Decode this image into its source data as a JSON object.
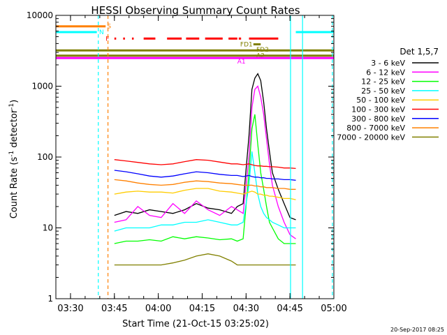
{
  "chart_data": {
    "type": "line",
    "title": "HESSI Observing Summary Count Rates",
    "xlabel": "Start Time (21-Oct-15 03:25:02)",
    "ylabel": "Count Rate (s",
    "ylabel_exp1": "-1",
    "ylabel_mid": " detector",
    "ylabel_exp2": "-1",
    "ylabel_end": ")",
    "yscale": "log",
    "ylim": [
      1,
      10000
    ],
    "xlim_minutes": [
      0,
      95
    ],
    "x_ticks": [
      {
        "label": "03:30",
        "minute": 5
      },
      {
        "label": "03:45",
        "minute": 20
      },
      {
        "label": "04:00",
        "minute": 35
      },
      {
        "label": "04:15",
        "minute": 50
      },
      {
        "label": "04:30",
        "minute": 65
      },
      {
        "label": "04:45",
        "minute": 80
      },
      {
        "label": "05:00",
        "minute": 95
      }
    ],
    "y_ticks": [
      {
        "label": "1",
        "value": 1
      },
      {
        "label": "10",
        "value": 10
      },
      {
        "label": "100",
        "value": 100
      },
      {
        "label": "1000",
        "value": 1000
      },
      {
        "label": "10000",
        "value": 10000
      }
    ],
    "legend_title": "Det 1,5,7",
    "legend_placement": "right",
    "series": [
      {
        "name": "3 - 6 keV",
        "color": "#000000",
        "points": [
          [
            20,
            15
          ],
          [
            24,
            17
          ],
          [
            28,
            16
          ],
          [
            32,
            18
          ],
          [
            36,
            17
          ],
          [
            40,
            16
          ],
          [
            44,
            18
          ],
          [
            48,
            22
          ],
          [
            52,
            19
          ],
          [
            56,
            18
          ],
          [
            60,
            16
          ],
          [
            62,
            20
          ],
          [
            64,
            22
          ],
          [
            66,
            200
          ],
          [
            67,
            900
          ],
          [
            68,
            1300
          ],
          [
            69,
            1500
          ],
          [
            70,
            1200
          ],
          [
            71,
            600
          ],
          [
            72,
            250
          ],
          [
            73,
            120
          ],
          [
            74,
            60
          ],
          [
            76,
            35
          ],
          [
            78,
            22
          ],
          [
            80,
            14
          ],
          [
            82,
            13
          ]
        ]
      },
      {
        "name": "6 - 12 keV",
        "color": "#ff00ff",
        "points": [
          [
            20,
            12
          ],
          [
            24,
            13
          ],
          [
            28,
            20
          ],
          [
            32,
            15
          ],
          [
            36,
            14
          ],
          [
            40,
            22
          ],
          [
            44,
            16
          ],
          [
            48,
            24
          ],
          [
            52,
            18
          ],
          [
            56,
            15
          ],
          [
            60,
            20
          ],
          [
            62,
            18
          ],
          [
            64,
            16
          ],
          [
            66,
            100
          ],
          [
            67,
            500
          ],
          [
            68,
            900
          ],
          [
            69,
            1000
          ],
          [
            70,
            700
          ],
          [
            71,
            400
          ],
          [
            72,
            180
          ],
          [
            73,
            80
          ],
          [
            74,
            40
          ],
          [
            76,
            20
          ],
          [
            78,
            12
          ],
          [
            80,
            8
          ],
          [
            82,
            7
          ]
        ]
      },
      {
        "name": "12 - 25 keV",
        "color": "#00ff00",
        "points": [
          [
            20,
            6
          ],
          [
            24,
            6.5
          ],
          [
            28,
            6.5
          ],
          [
            32,
            6.8
          ],
          [
            36,
            6.5
          ],
          [
            40,
            7.5
          ],
          [
            44,
            7
          ],
          [
            48,
            7.5
          ],
          [
            52,
            7.2
          ],
          [
            56,
            6.8
          ],
          [
            60,
            7
          ],
          [
            62,
            6.5
          ],
          [
            64,
            7
          ],
          [
            66,
            60
          ],
          [
            67,
            250
          ],
          [
            68,
            400
          ],
          [
            69,
            150
          ],
          [
            70,
            60
          ],
          [
            71,
            35
          ],
          [
            72,
            20
          ],
          [
            73,
            12
          ],
          [
            74,
            10
          ],
          [
            76,
            7
          ],
          [
            78,
            6
          ],
          [
            80,
            6
          ],
          [
            82,
            6
          ]
        ]
      },
      {
        "name": "25 - 50 keV",
        "color": "#00ffff",
        "points": [
          [
            20,
            9
          ],
          [
            24,
            10
          ],
          [
            28,
            10
          ],
          [
            32,
            10
          ],
          [
            36,
            11
          ],
          [
            40,
            11
          ],
          [
            44,
            12
          ],
          [
            48,
            12
          ],
          [
            52,
            13
          ],
          [
            56,
            12
          ],
          [
            60,
            11
          ],
          [
            62,
            11
          ],
          [
            64,
            12
          ],
          [
            66,
            40
          ],
          [
            67,
            120
          ],
          [
            68,
            60
          ],
          [
            69,
            30
          ],
          [
            70,
            20
          ],
          [
            71,
            16
          ],
          [
            72,
            14
          ],
          [
            73,
            13
          ],
          [
            74,
            12
          ],
          [
            76,
            11
          ],
          [
            78,
            10
          ],
          [
            80,
            10
          ],
          [
            82,
            10
          ]
        ]
      },
      {
        "name": "50 - 100 keV",
        "color": "#ffcc00",
        "points": [
          [
            20,
            30
          ],
          [
            24,
            32
          ],
          [
            28,
            33
          ],
          [
            32,
            32
          ],
          [
            36,
            32
          ],
          [
            40,
            31
          ],
          [
            44,
            34
          ],
          [
            48,
            36
          ],
          [
            52,
            36
          ],
          [
            56,
            33
          ],
          [
            60,
            32
          ],
          [
            62,
            31
          ],
          [
            64,
            30
          ],
          [
            66,
            32
          ],
          [
            67,
            33
          ],
          [
            68,
            32
          ],
          [
            69,
            30
          ],
          [
            70,
            30
          ],
          [
            71,
            29
          ],
          [
            72,
            29
          ],
          [
            73,
            28
          ],
          [
            74,
            28
          ],
          [
            76,
            27
          ],
          [
            78,
            26
          ],
          [
            80,
            26
          ],
          [
            82,
            25
          ]
        ]
      },
      {
        "name": "100 - 300 keV",
        "color": "#ff0000",
        "points": [
          [
            20,
            92
          ],
          [
            24,
            88
          ],
          [
            28,
            84
          ],
          [
            32,
            80
          ],
          [
            36,
            78
          ],
          [
            40,
            80
          ],
          [
            44,
            86
          ],
          [
            48,
            92
          ],
          [
            52,
            90
          ],
          [
            56,
            85
          ],
          [
            60,
            80
          ],
          [
            62,
            80
          ],
          [
            64,
            78
          ],
          [
            66,
            80
          ],
          [
            67,
            78
          ],
          [
            68,
            76
          ],
          [
            69,
            75
          ],
          [
            70,
            75
          ],
          [
            71,
            74
          ],
          [
            72,
            74
          ],
          [
            73,
            73
          ],
          [
            74,
            73
          ],
          [
            76,
            72
          ],
          [
            78,
            70
          ],
          [
            80,
            70
          ],
          [
            82,
            69
          ]
        ]
      },
      {
        "name": "300 - 800 keV",
        "color": "#0000ff",
        "points": [
          [
            20,
            65
          ],
          [
            24,
            62
          ],
          [
            28,
            58
          ],
          [
            32,
            54
          ],
          [
            36,
            52
          ],
          [
            40,
            54
          ],
          [
            44,
            58
          ],
          [
            48,
            62
          ],
          [
            52,
            60
          ],
          [
            56,
            57
          ],
          [
            60,
            55
          ],
          [
            62,
            55
          ],
          [
            64,
            53
          ],
          [
            66,
            55
          ],
          [
            67,
            53
          ],
          [
            68,
            52
          ],
          [
            69,
            52
          ],
          [
            70,
            51
          ],
          [
            71,
            51
          ],
          [
            72,
            50
          ],
          [
            73,
            50
          ],
          [
            74,
            49
          ],
          [
            76,
            49
          ],
          [
            78,
            48
          ],
          [
            80,
            48
          ],
          [
            82,
            47
          ]
        ]
      },
      {
        "name": "800 - 7000 keV",
        "color": "#ff8000",
        "points": [
          [
            20,
            48
          ],
          [
            24,
            46
          ],
          [
            28,
            43
          ],
          [
            32,
            41
          ],
          [
            36,
            40
          ],
          [
            40,
            41
          ],
          [
            44,
            44
          ],
          [
            48,
            46
          ],
          [
            52,
            45
          ],
          [
            56,
            43
          ],
          [
            60,
            42
          ],
          [
            62,
            41
          ],
          [
            64,
            40
          ],
          [
            66,
            40
          ],
          [
            67,
            40
          ],
          [
            68,
            39
          ],
          [
            69,
            39
          ],
          [
            70,
            38
          ],
          [
            71,
            38
          ],
          [
            72,
            37
          ],
          [
            73,
            37
          ],
          [
            74,
            37
          ],
          [
            76,
            36
          ],
          [
            78,
            36
          ],
          [
            80,
            35
          ],
          [
            82,
            35
          ]
        ]
      },
      {
        "name": "7000 - 20000 keV",
        "color": "#808000",
        "points": [
          [
            20,
            3
          ],
          [
            24,
            3
          ],
          [
            28,
            3
          ],
          [
            32,
            3
          ],
          [
            36,
            3
          ],
          [
            40,
            3.2
          ],
          [
            44,
            3.5
          ],
          [
            48,
            4
          ],
          [
            52,
            4.3
          ],
          [
            56,
            4
          ],
          [
            60,
            3.4
          ],
          [
            62,
            3
          ],
          [
            64,
            3
          ],
          [
            66,
            3
          ],
          [
            67,
            3
          ],
          [
            68,
            3
          ],
          [
            69,
            3
          ],
          [
            70,
            3
          ],
          [
            71,
            3
          ],
          [
            72,
            3
          ],
          [
            73,
            3
          ],
          [
            74,
            3
          ],
          [
            76,
            3
          ],
          [
            78,
            3
          ],
          [
            80,
            3
          ],
          [
            82,
            3
          ]
        ]
      }
    ],
    "flag_bars": [
      {
        "label": "S",
        "color": "#ff8000",
        "value": 7000,
        "segments": [
          [
            0,
            17
          ]
        ]
      },
      {
        "label": "N",
        "color": "#00ffff",
        "value": 5800,
        "segments": [
          [
            0,
            14
          ],
          [
            82,
            95
          ]
        ]
      },
      {
        "label": "F",
        "color": "#ff0000",
        "value": 4700,
        "segments": [
          [
            20,
            20.6
          ],
          [
            23,
            23.6
          ],
          [
            26,
            26.6
          ],
          [
            30,
            34
          ],
          [
            38,
            43
          ],
          [
            44.5,
            49
          ],
          [
            51,
            57
          ],
          [
            59,
            62
          ],
          [
            62.5,
            63.3
          ],
          [
            66,
            76
          ]
        ]
      },
      {
        "label": "FD1",
        "color": "#808000",
        "value": 3900,
        "segments": [
          [
            67.5,
            70
          ]
        ]
      },
      {
        "label": "FD2",
        "color": "#808000",
        "value": 3200,
        "segments": [
          [
            0,
            95
          ]
        ]
      },
      {
        "label": "A2",
        "color": "#808000",
        "value": 2700,
        "segments": [
          [
            0,
            95
          ]
        ]
      },
      {
        "label": "A1",
        "color": "#ff00ff",
        "value": 2500,
        "segments": [
          [
            0,
            95
          ]
        ]
      }
    ],
    "vertical_lines": [
      {
        "minute": 14.5,
        "color": "#00ffff",
        "dashed": true
      },
      {
        "minute": 17.8,
        "color": "#ff8000",
        "dashed": true
      },
      {
        "minute": 80.2,
        "color": "#00ffff",
        "dashed": false
      },
      {
        "minute": 84.3,
        "color": "#00ffff",
        "dashed": false
      },
      {
        "minute": 94.5,
        "color": "#00ffff",
        "dashed": true
      }
    ],
    "footer_date": "20-Sep-2017 08:25"
  }
}
